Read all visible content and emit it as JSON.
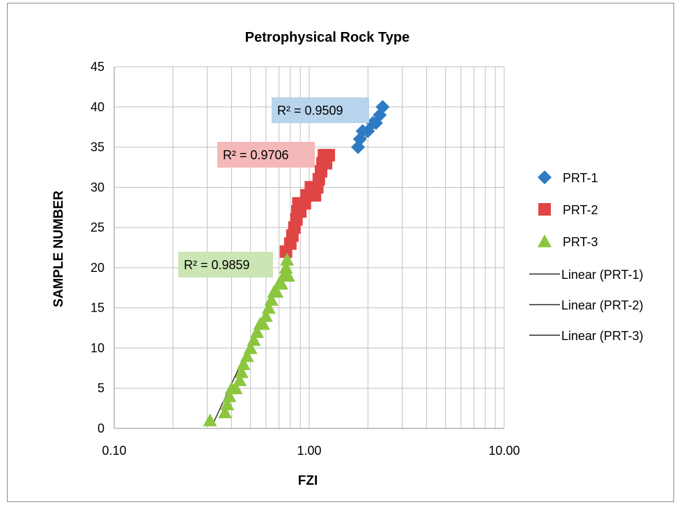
{
  "chart_data": {
    "type": "scatter",
    "title": "Petrophysical Rock Type",
    "xlabel": "FZI",
    "ylabel": "SAMPLE NUMBER",
    "x_scale": "log",
    "xlim": [
      0.1,
      10
    ],
    "ylim": [
      0,
      45
    ],
    "x_ticks": [
      "0.10",
      "1.00",
      "10.00"
    ],
    "y_ticks": [
      "0",
      "5",
      "10",
      "15",
      "20",
      "25",
      "30",
      "35",
      "40",
      "45"
    ],
    "grid": true,
    "legend_position": "right",
    "series": [
      {
        "name": "PRT-1",
        "marker": "diamond",
        "color": "#2e7bc4",
        "x": [
          1.78,
          1.82,
          1.88,
          2.0,
          2.12,
          2.2,
          2.3,
          2.38
        ],
        "y": [
          35,
          36,
          37,
          37,
          38,
          38,
          39,
          40
        ]
      },
      {
        "name": "PRT-2",
        "marker": "square",
        "color": "#e04545",
        "x": [
          0.76,
          0.8,
          0.82,
          0.84,
          0.86,
          0.87,
          0.88,
          0.9,
          0.92,
          0.95,
          0.97,
          1.02,
          1.07,
          1.1,
          1.12,
          1.15,
          1.17,
          1.19,
          1.22,
          1.26
        ],
        "y": [
          22,
          23,
          24,
          25,
          26,
          27,
          28,
          27,
          28,
          28,
          29,
          30,
          29,
          30,
          31,
          32,
          33,
          34,
          33,
          34
        ]
      },
      {
        "name": "PRT-3",
        "marker": "triangle",
        "color": "#8cc63f",
        "x": [
          0.31,
          0.37,
          0.38,
          0.39,
          0.4,
          0.42,
          0.44,
          0.45,
          0.46,
          0.48,
          0.5,
          0.52,
          0.54,
          0.56,
          0.58,
          0.6,
          0.62,
          0.64,
          0.66,
          0.68,
          0.7,
          0.72,
          0.74,
          0.76,
          0.77,
          0.78
        ],
        "y": [
          1,
          2,
          3,
          4,
          5,
          5,
          6,
          7,
          8,
          9,
          10,
          11,
          12,
          13,
          13,
          14,
          15,
          16,
          17,
          17,
          18,
          18,
          19,
          20,
          21,
          19
        ]
      }
    ],
    "trendlines": [
      {
        "name": "Linear (PRT-1)",
        "r2_label": "R² = 0.9509",
        "label_bg": "#b8d4ec",
        "x": [
          1.8,
          2.4
        ],
        "y": [
          35.0,
          39.5
        ]
      },
      {
        "name": "Linear (PRT-2)",
        "r2_label": "R² = 0.9706",
        "label_bg": "#f4b8b8",
        "x": [
          0.77,
          1.24
        ],
        "y": [
          22.5,
          34.0
        ]
      },
      {
        "name": "Linear (PRT-3)",
        "r2_label": "R² = 0.9859",
        "label_bg": "#cce5b4",
        "x": [
          0.32,
          0.79
        ],
        "y": [
          0.5,
          21.0
        ]
      }
    ]
  }
}
